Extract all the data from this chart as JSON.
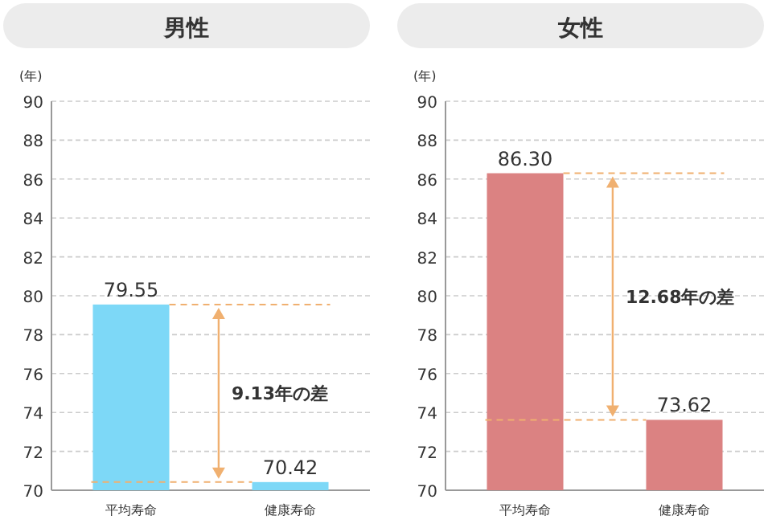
{
  "chart_data": [
    {
      "type": "bar",
      "title": "男性",
      "ylabel": "(年)",
      "categories": [
        "平均寿命",
        "健康寿命"
      ],
      "values": [
        79.55,
        70.42
      ],
      "value_labels": [
        "79.55",
        "70.42"
      ],
      "color": "#7dd8f7",
      "ylim": [
        70,
        90
      ],
      "yticks": [
        70,
        72,
        74,
        76,
        78,
        80,
        82,
        84,
        86,
        88,
        90
      ],
      "grid": "y",
      "annotations": [
        "9.13年の差"
      ],
      "ref_lines": [
        {
          "axis": "y",
          "value": 79.55,
          "color": "#f0b070",
          "line_style": "dashed"
        },
        {
          "axis": "y",
          "value": 70.42,
          "color": "#f0b070",
          "line_style": "dashed"
        }
      ]
    },
    {
      "type": "bar",
      "title": "女性",
      "ylabel": "(年)",
      "categories": [
        "平均寿命",
        "健康寿命"
      ],
      "values": [
        86.3,
        73.62
      ],
      "value_labels": [
        "86.30",
        "73.62"
      ],
      "color": "#db8282",
      "ylim": [
        70,
        90
      ],
      "yticks": [
        70,
        72,
        74,
        76,
        78,
        80,
        82,
        84,
        86,
        88,
        90
      ],
      "grid": "y",
      "annotations": [
        "12.68年の差"
      ],
      "ref_lines": [
        {
          "axis": "y",
          "value": 86.3,
          "color": "#f0b070",
          "line_style": "dashed"
        },
        {
          "axis": "y",
          "value": 73.62,
          "color": "#f0b070",
          "line_style": "dashed"
        }
      ]
    }
  ]
}
